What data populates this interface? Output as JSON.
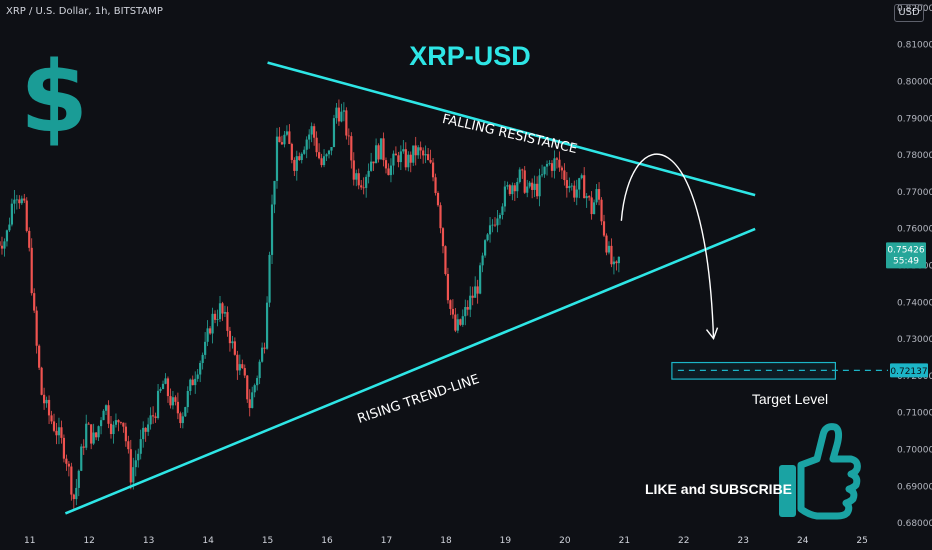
{
  "header": {
    "symbol": "XRP / U.S. Dollar, 1h, BITSTAMP",
    "currency_button": "USD"
  },
  "colors": {
    "background": "#0e1015",
    "up": "#26a69a",
    "down": "#ef5350",
    "trendline": "#2ee6e6",
    "title": "#2ee6e6",
    "dollar_sign": "#1a9c96",
    "thumb": "#1aa3a3",
    "price_tag": "#26a69a",
    "target_tag": "#1cb5c7"
  },
  "icons": [
    "dollar-sign-icon",
    "thumbs-up-icon"
  ],
  "chart_data": {
    "type": "candlestick",
    "title": "XRP-USD",
    "x_ticks": [
      "11",
      "12",
      "13",
      "14",
      "15",
      "16",
      "17",
      "18",
      "19",
      "20",
      "21",
      "22",
      "23",
      "24",
      "25"
    ],
    "y_ticks": [
      "0.82000",
      "0.81000",
      "0.80000",
      "0.79000",
      "0.78000",
      "0.77000",
      "0.76000",
      "0.75000",
      "0.74000",
      "0.73000",
      "0.72000",
      "0.71000",
      "0.70000",
      "0.69000",
      "0.68000"
    ],
    "y_range": [
      0.678,
      0.822
    ],
    "x_range": [
      10.5,
      25.3
    ],
    "last_price": "0.75426",
    "countdown": "55:49",
    "target_price": "0.72137",
    "price_path": [
      [
        10.45,
        0.7565
      ],
      [
        10.6,
        0.757
      ],
      [
        10.75,
        0.771
      ],
      [
        10.9,
        0.766
      ],
      [
        11.0,
        0.752
      ],
      [
        11.1,
        0.73
      ],
      [
        11.2,
        0.715
      ],
      [
        11.3,
        0.71
      ],
      [
        11.45,
        0.705
      ],
      [
        11.6,
        0.699
      ],
      [
        11.75,
        0.686
      ],
      [
        11.85,
        0.697
      ],
      [
        11.95,
        0.706
      ],
      [
        12.1,
        0.702
      ],
      [
        12.25,
        0.713
      ],
      [
        12.4,
        0.705
      ],
      [
        12.55,
        0.71
      ],
      [
        12.7,
        0.693
      ],
      [
        12.8,
        0.698
      ],
      [
        12.95,
        0.705
      ],
      [
        13.1,
        0.71
      ],
      [
        13.25,
        0.718
      ],
      [
        13.4,
        0.712
      ],
      [
        13.55,
        0.709
      ],
      [
        13.65,
        0.714
      ],
      [
        13.8,
        0.722
      ],
      [
        13.95,
        0.727
      ],
      [
        14.05,
        0.735
      ],
      [
        14.2,
        0.738
      ],
      [
        14.35,
        0.732
      ],
      [
        14.45,
        0.725
      ],
      [
        14.6,
        0.719
      ],
      [
        14.7,
        0.712
      ],
      [
        14.85,
        0.722
      ],
      [
        14.95,
        0.73
      ],
      [
        15.05,
        0.76
      ],
      [
        15.15,
        0.782
      ],
      [
        15.3,
        0.785
      ],
      [
        15.45,
        0.778
      ],
      [
        15.6,
        0.783
      ],
      [
        15.75,
        0.787
      ],
      [
        15.9,
        0.777
      ],
      [
        16.05,
        0.78
      ],
      [
        16.15,
        0.793
      ],
      [
        16.3,
        0.789
      ],
      [
        16.45,
        0.775
      ],
      [
        16.6,
        0.773
      ],
      [
        16.75,
        0.779
      ],
      [
        16.9,
        0.782
      ],
      [
        17.05,
        0.776
      ],
      [
        17.2,
        0.78
      ],
      [
        17.35,
        0.778
      ],
      [
        17.5,
        0.781
      ],
      [
        17.65,
        0.779
      ],
      [
        17.75,
        0.776
      ],
      [
        17.85,
        0.77
      ],
      [
        17.95,
        0.756
      ],
      [
        18.05,
        0.74
      ],
      [
        18.15,
        0.732
      ],
      [
        18.25,
        0.734
      ],
      [
        18.4,
        0.74
      ],
      [
        18.55,
        0.745
      ],
      [
        18.65,
        0.754
      ],
      [
        18.8,
        0.762
      ],
      [
        18.95,
        0.768
      ],
      [
        19.1,
        0.772
      ],
      [
        19.25,
        0.774
      ],
      [
        19.4,
        0.77
      ],
      [
        19.55,
        0.771
      ],
      [
        19.7,
        0.777
      ],
      [
        19.85,
        0.778
      ],
      [
        20.0,
        0.774
      ],
      [
        20.15,
        0.77
      ],
      [
        20.3,
        0.772
      ],
      [
        20.45,
        0.765
      ],
      [
        20.55,
        0.77
      ],
      [
        20.65,
        0.76
      ],
      [
        20.75,
        0.752
      ],
      [
        20.85,
        0.747
      ],
      [
        20.95,
        0.7543
      ]
    ],
    "annotations": [
      {
        "type": "line",
        "label": "FALLING RESISTANCE",
        "from": [
          15.0,
          0.805
        ],
        "to": [
          23.2,
          0.769
        ]
      },
      {
        "type": "line",
        "label": "RISING TREND-LINE",
        "from": [
          11.6,
          0.6825
        ],
        "to": [
          23.2,
          0.7598
        ]
      },
      {
        "type": "arrow",
        "label": "",
        "path": [
          [
            20.95,
            0.762
          ],
          [
            21.7,
            0.784
          ],
          [
            22.5,
            0.73
          ]
        ]
      },
      {
        "type": "box",
        "label": "Target Level",
        "from": [
          21.8,
          0.7235
        ],
        "to": [
          24.55,
          0.719
        ]
      },
      {
        "type": "text",
        "label": "LIKE and SUBSCRIBE"
      }
    ]
  }
}
